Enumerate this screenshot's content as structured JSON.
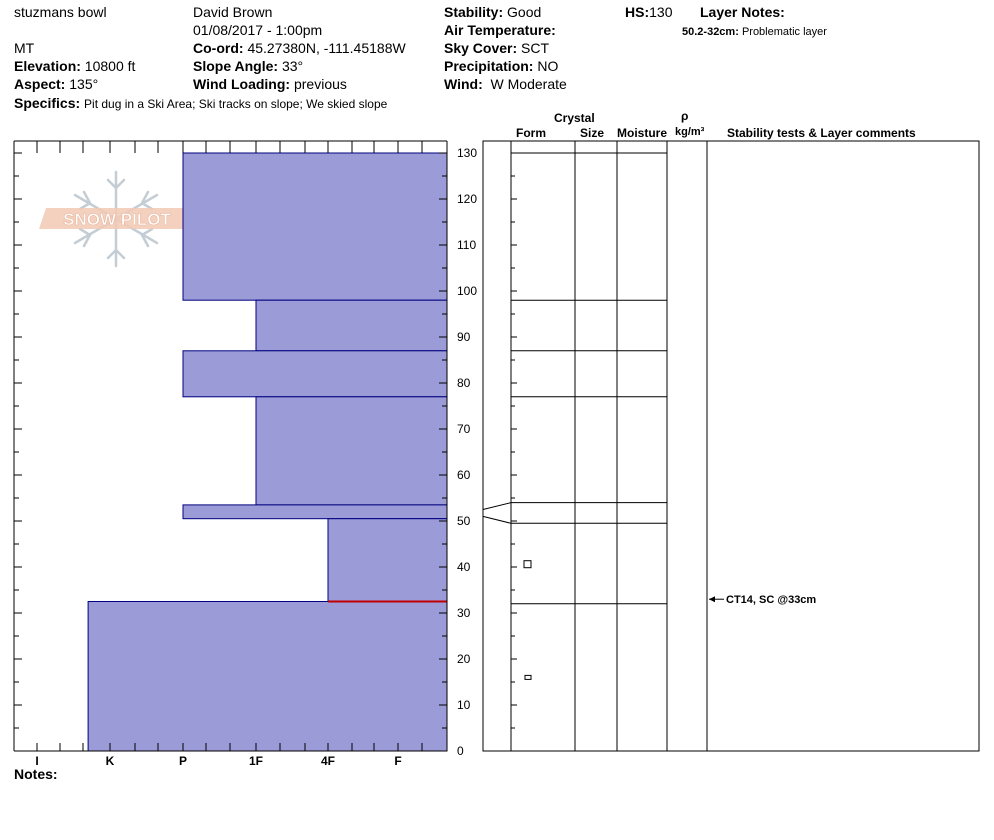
{
  "header": {
    "location": "stuzmans bowl",
    "state": "MT",
    "observer": "David Brown",
    "datetime": "01/08/2017 - 1:00pm",
    "elevation_label": "Elevation:",
    "elevation_value": "10800 ft",
    "aspect_label": "Aspect:",
    "aspect_value": "135°",
    "specifics_label": "Specifics:",
    "specifics_value": "Pit dug in a Ski Area; Ski tracks on slope; We skied slope",
    "coord_label": "Co-ord:",
    "coord_value": "45.27380N, -111.45188W",
    "slope_label": "Slope Angle:",
    "slope_value": "33°",
    "wind_loading_label": "Wind Loading:",
    "wind_loading_value": "previous",
    "stability_label": "Stability:",
    "stability_value": "Good",
    "air_temp_label": "Air Temperature:",
    "sky_label": "Sky Cover:",
    "sky_value": "SCT",
    "precip_label": "Precipitation:",
    "precip_value": "NO",
    "wind_label": "Wind:",
    "wind_value": "W Moderate",
    "hs_label": "HS:",
    "hs_value": "130",
    "layer_notes_label": "Layer Notes:",
    "layer_note_range": "50.2-32cm:",
    "layer_note_text": "Problematic layer"
  },
  "columns": {
    "crystal": "Crystal",
    "form": "Form",
    "size": "Size",
    "moisture": "Moisture",
    "rho": "ρ",
    "density_unit": "kg/m³",
    "stability": "Stability tests & Layer comments"
  },
  "logo_text": "SNOW PILOT",
  "notes_label": "Notes:",
  "colors": {
    "layer_fill": "#9b9bd7",
    "layer_stroke": "#00007f",
    "weak_layer": "#c00000"
  },
  "chart_data": {
    "type": "bar",
    "orientation": "horizontal",
    "y_axis": {
      "range": [
        0,
        130
      ],
      "ticks": [
        0,
        10,
        20,
        30,
        40,
        50,
        60,
        70,
        80,
        90,
        100,
        110,
        120,
        130
      ]
    },
    "hardness_scale": [
      "I",
      "K",
      "P",
      "1F",
      "4F",
      "F"
    ],
    "layers": [
      {
        "top": 130,
        "bottom": 98,
        "hardness": 2.0
      },
      {
        "top": 98,
        "bottom": 87,
        "hardness": 3.0
      },
      {
        "top": 87,
        "bottom": 77,
        "hardness": 2.0
      },
      {
        "top": 77,
        "bottom": 53.5,
        "hardness": 3.0
      },
      {
        "top": 53.5,
        "bottom": 50.5,
        "hardness": 2.0
      },
      {
        "top": 50.5,
        "bottom": 32.5,
        "hardness": 4.0
      },
      {
        "top": 32.5,
        "bottom": 0,
        "hardness": 0.7
      }
    ],
    "weak_layer_height": 32.5,
    "grid_boundaries": [
      130,
      98,
      87,
      77,
      54,
      49.5,
      32
    ],
    "crystal_form_marks": [
      {
        "height": 40.5
      },
      {
        "height": 16
      }
    ],
    "stability_tests": [
      {
        "height": 33,
        "label": "CT14, SC @33cm"
      }
    ]
  }
}
